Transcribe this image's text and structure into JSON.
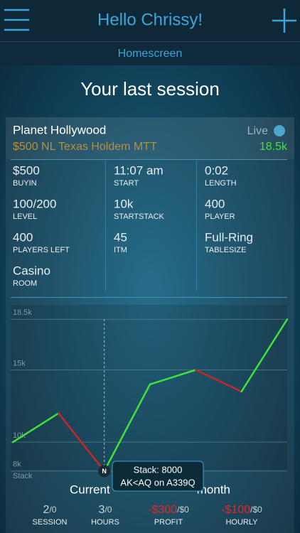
{
  "header": {
    "title": "Hello Chrissy!",
    "subtitle": "Homescreen"
  },
  "section_title": "Your last session",
  "session": {
    "venue": "Planet Hollywood",
    "game": "$500 NL Texas Holdem MTT",
    "status": "Live",
    "stack": "18.5k",
    "stats": [
      {
        "value": "$500",
        "label": "BUYIN"
      },
      {
        "value": "11:07 am",
        "label": "START"
      },
      {
        "value": "0:02",
        "label": "LENGTH"
      },
      {
        "value": "100/200",
        "label": "LEVEL"
      },
      {
        "value": "10k",
        "label": "STARTSTACK"
      },
      {
        "value": "400",
        "label": "PLAYER"
      },
      {
        "value": "400",
        "label": "PLAYERS LEFT"
      },
      {
        "value": "45",
        "label": "ITM"
      },
      {
        "value": "Full-Ring",
        "label": "TABLESIZE"
      },
      {
        "value": "Casino",
        "label": "ROOM"
      }
    ]
  },
  "chart_data": {
    "type": "line",
    "ylabel": "Stack",
    "categories": [
      null,
      null,
      null,
      null,
      null,
      null,
      null
    ],
    "series": [
      {
        "values": [
          10000,
          12000,
          8000,
          14000,
          15000,
          13500,
          18500
        ],
        "color": "#3fe33a",
        "down_color": "#c4282a"
      }
    ],
    "ylim": [
      7500,
      19500
    ],
    "yticks": [
      {
        "value": 18500,
        "label": "18.5k"
      },
      {
        "value": 15000,
        "label": "15k"
      },
      {
        "value": 10000,
        "label": "10k"
      },
      {
        "value": 8000,
        "label": "8k"
      }
    ],
    "grid": true,
    "annotation": {
      "marker": "N",
      "lines": [
        "Stack: 8000",
        "AK<AQ on A339Q"
      ]
    }
  },
  "summary": {
    "title_left": "Current",
    "title_right": "month",
    "items": [
      {
        "value": "2",
        "total": "/0",
        "label": "SESSION",
        "color": "#c9d3d8"
      },
      {
        "value": "3",
        "total": "/0",
        "label": "HOURS",
        "color": "#c9d3d8"
      },
      {
        "value": "-$300",
        "total": "/$0",
        "label": "PROFIT",
        "color": "#e0282a"
      },
      {
        "value": "-$100",
        "total": "/$0",
        "label": "HOURLY",
        "color": "#e0282a"
      }
    ]
  }
}
